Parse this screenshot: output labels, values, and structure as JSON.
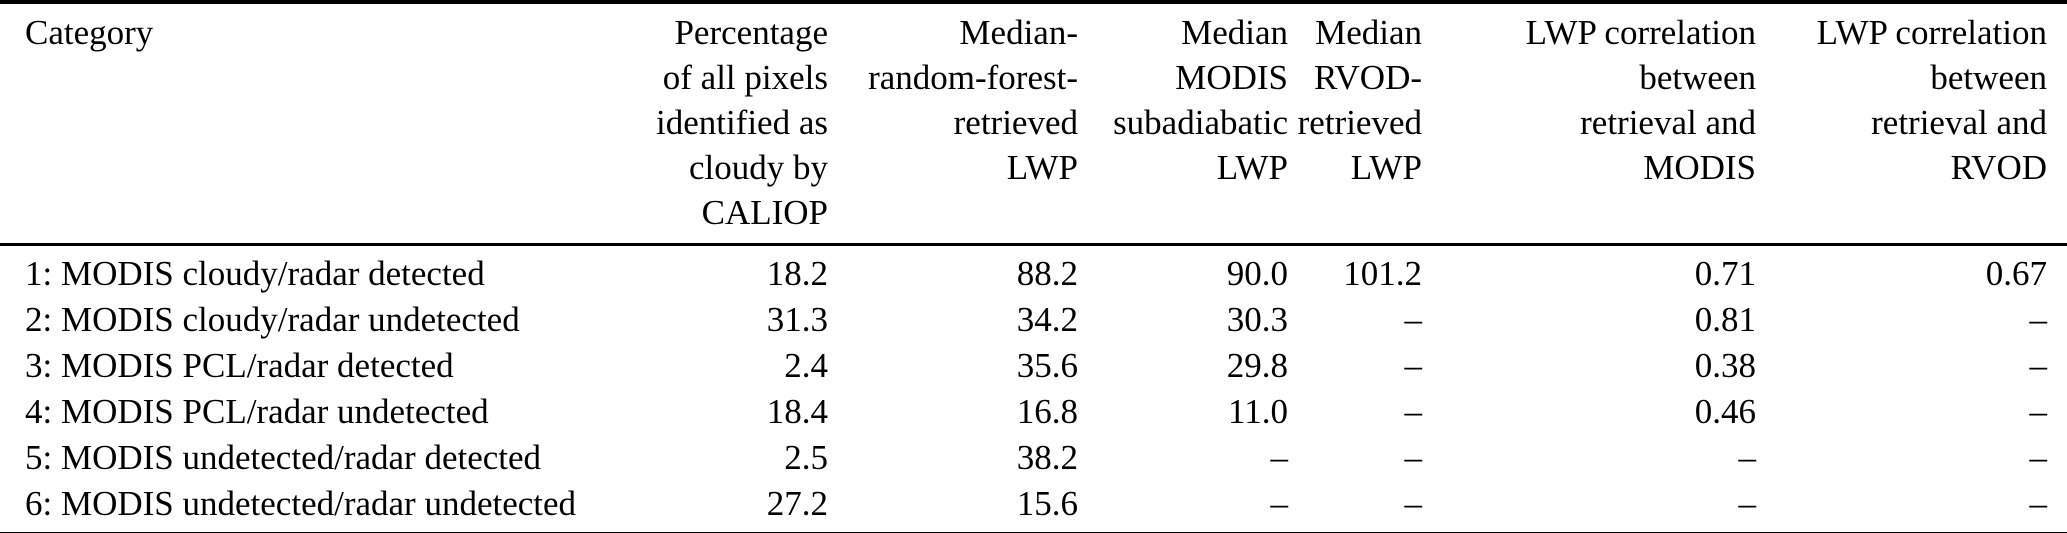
{
  "colors": {
    "background": "#ffffff",
    "text": "#000000",
    "rule": "#000000"
  },
  "table": {
    "columns": [
      {
        "label": "Category"
      },
      {
        "label": "Percentage\nof all pixels\nidentified as\ncloudy by\nCALIOP"
      },
      {
        "label": "Median-\nrandom-forest-\nretrieved\nLWP"
      },
      {
        "label": "Median\nMODIS\nsubadiabatic\nLWP"
      },
      {
        "label": "Median\nRVOD-\nretrieved\nLWP"
      },
      {
        "label": "LWP correlation\nbetween\nretrieval and\nMODIS"
      },
      {
        "label": "LWP correlation\nbetween\nretrieval and\nRVOD"
      }
    ],
    "rows": [
      {
        "category": "1: MODIS cloudy/radar detected",
        "values": [
          "18.2",
          "88.2",
          "90.0",
          "101.2",
          "0.71",
          "0.67"
        ]
      },
      {
        "category": "2: MODIS cloudy/radar undetected",
        "values": [
          "31.3",
          "34.2",
          "30.3",
          "–",
          "0.81",
          "–"
        ]
      },
      {
        "category": "3: MODIS PCL/radar detected",
        "values": [
          "2.4",
          "35.6",
          "29.8",
          "–",
          "0.38",
          "–"
        ]
      },
      {
        "category": "4: MODIS PCL/radar undetected",
        "values": [
          "18.4",
          "16.8",
          "11.0",
          "–",
          "0.46",
          "–"
        ]
      },
      {
        "category": "5: MODIS undetected/radar detected",
        "values": [
          "2.5",
          "38.2",
          "–",
          "–",
          "–",
          "–"
        ]
      },
      {
        "category": "6: MODIS undetected/radar undetected",
        "values": [
          "27.2",
          "15.6",
          "–",
          "–",
          "–",
          "–"
        ]
      }
    ]
  }
}
